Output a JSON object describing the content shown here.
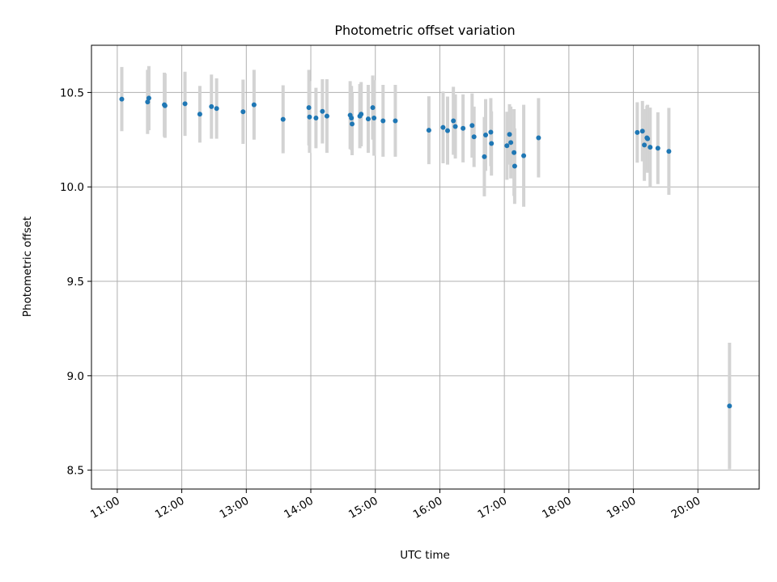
{
  "chart_data": {
    "type": "scatter",
    "title": "Photometric offset variation",
    "xlabel": "UTC time",
    "ylabel": "Photometric offset",
    "grid": true,
    "legend": "none",
    "x_unit": "hours UTC",
    "xlim": [
      10.6,
      20.95
    ],
    "ylim": [
      8.4,
      10.75
    ],
    "xticks": [
      11,
      12,
      13,
      14,
      15,
      16,
      17,
      18,
      19,
      20
    ],
    "xtick_labels": [
      "11:00",
      "12:00",
      "13:00",
      "14:00",
      "15:00",
      "16:00",
      "17:00",
      "18:00",
      "19:00",
      "20:00"
    ],
    "yticks": [
      8.5,
      9.0,
      9.5,
      10.0,
      10.5
    ],
    "ytick_labels": [
      "8.5",
      "9.0",
      "9.5",
      "10.0",
      "10.5"
    ],
    "colors": {
      "point": "#1f77b4",
      "errorbar": "#d3d3d3",
      "grid": "#b0b0b0",
      "axes": "#000000"
    },
    "series": [
      {
        "name": "offset",
        "x": [
          11.07,
          11.47,
          11.49,
          11.73,
          11.74,
          12.05,
          12.28,
          12.46,
          12.54,
          12.95,
          13.12,
          13.57,
          13.97,
          13.98,
          14.08,
          14.18,
          14.25,
          14.61,
          14.63,
          14.64,
          14.76,
          14.78,
          14.89,
          14.96,
          14.98,
          15.12,
          15.31,
          15.83,
          16.05,
          16.12,
          16.21,
          16.24,
          16.36,
          16.5,
          16.53,
          16.69,
          16.71,
          16.79,
          16.8,
          17.04,
          17.08,
          17.1,
          17.15,
          17.16,
          17.3,
          17.53,
          19.06,
          19.14,
          19.17,
          19.21,
          19.22,
          19.26,
          19.38,
          19.55,
          20.49
        ],
        "y": [
          10.465,
          10.45,
          10.47,
          10.435,
          10.43,
          10.44,
          10.385,
          10.425,
          10.415,
          10.398,
          10.435,
          10.358,
          10.42,
          10.37,
          10.365,
          10.4,
          10.375,
          10.38,
          10.365,
          10.333,
          10.375,
          10.385,
          10.36,
          10.42,
          10.365,
          10.35,
          10.35,
          10.3,
          10.315,
          10.298,
          10.35,
          10.32,
          10.31,
          10.325,
          10.265,
          10.16,
          10.275,
          10.29,
          10.23,
          10.218,
          10.278,
          10.235,
          10.182,
          10.11,
          10.165,
          10.26,
          10.288,
          10.295,
          10.222,
          10.26,
          10.255,
          10.21,
          10.205,
          10.188,
          8.84
        ],
        "yerr": [
          0.17,
          0.17,
          0.17,
          0.17,
          0.17,
          0.17,
          0.15,
          0.17,
          0.16,
          0.17,
          0.185,
          0.18,
          0.2,
          0.19,
          0.16,
          0.17,
          0.195,
          0.18,
          0.17,
          0.165,
          0.17,
          0.17,
          0.18,
          0.17,
          0.2,
          0.19,
          0.19,
          0.18,
          0.19,
          0.18,
          0.18,
          0.17,
          0.18,
          0.17,
          0.16,
          0.21,
          0.19,
          0.18,
          0.17,
          0.18,
          0.16,
          0.19,
          0.23,
          0.2,
          0.27,
          0.21,
          0.16,
          0.16,
          0.19,
          0.17,
          0.18,
          0.21,
          0.19,
          0.23,
          0.335
        ]
      }
    ]
  }
}
